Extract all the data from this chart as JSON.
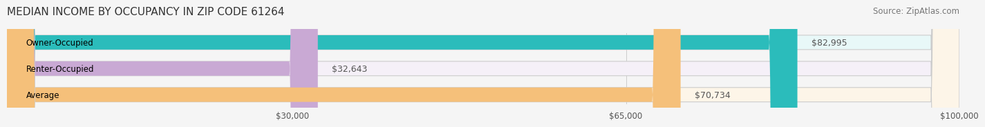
{
  "title": "MEDIAN INCOME BY OCCUPANCY IN ZIP CODE 61264",
  "source": "Source: ZipAtlas.com",
  "categories": [
    "Owner-Occupied",
    "Renter-Occupied",
    "Average"
  ],
  "values": [
    82995,
    32643,
    70734
  ],
  "labels": [
    "$82,995",
    "$32,643",
    "$70,734"
  ],
  "bar_colors": [
    "#2bbcbb",
    "#c9a9d4",
    "#f5c07a"
  ],
  "bar_bg_colors": [
    "#e8f8f8",
    "#f5f0f8",
    "#fdf5e8"
  ],
  "xlim": [
    0,
    100000
  ],
  "xticks": [
    30000,
    65000,
    100000
  ],
  "xtick_labels": [
    "$30,000",
    "$65,000",
    "$100,000"
  ],
  "bar_height": 0.55,
  "label_fontsize": 9,
  "title_fontsize": 11,
  "source_fontsize": 8.5,
  "tick_fontsize": 8.5,
  "category_fontsize": 8.5,
  "background_color": "#f5f5f5"
}
